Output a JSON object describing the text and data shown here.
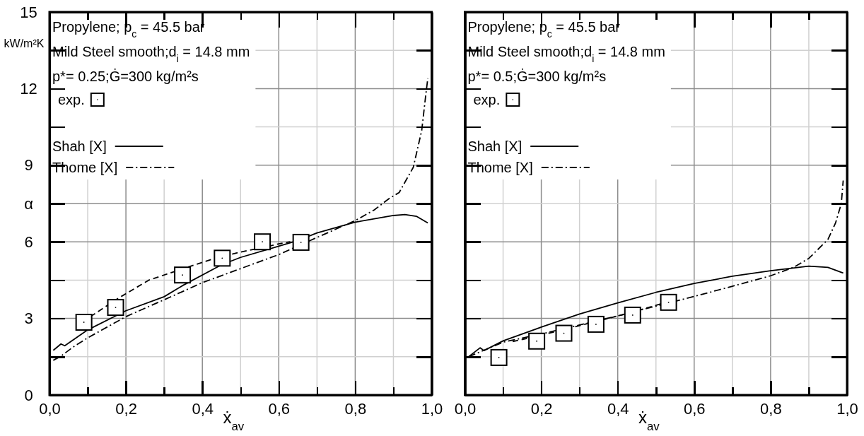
{
  "chart_data": [
    {
      "type": "line",
      "xlabel": "ẋ$_{av}$",
      "ylabel": "kW/m²K",
      "annotations": [
        "Propylene; p$_{c}$ = 45.5 bar",
        "Mild Steel smooth;d$_{i}$ = 14.8 mm",
        "p*= 0.25;Ġ=300 kg/m²s"
      ],
      "xlim": [
        0,
        1
      ],
      "ylim": [
        0,
        15
      ],
      "xticks": [
        {
          "value": 0,
          "label": "0,0"
        },
        {
          "value": 0.1,
          "label": null
        },
        {
          "value": 0.2,
          "label": "0,2"
        },
        {
          "value": 0.3,
          "label": null
        },
        {
          "value": 0.4,
          "label": "0,4"
        },
        {
          "value": 0.5,
          "label": null
        },
        {
          "value": 0.6,
          "label": "0,6"
        },
        {
          "value": 0.7,
          "label": null
        },
        {
          "value": 0.8,
          "label": "0,8"
        },
        {
          "value": 0.9,
          "label": null
        },
        {
          "value": 1,
          "label": "1,0"
        }
      ],
      "yticks": [
        0,
        {
          "value": 1.5,
          "label": null
        },
        3,
        {
          "value": 4.5,
          "label": null
        },
        6,
        {
          "value": 7.5,
          "label": "α"
        },
        9,
        {
          "value": 10.5,
          "label": null
        },
        12,
        {
          "value": 13.5,
          "label": null
        },
        15
      ],
      "grid": true,
      "legend": "top left",
      "series": [
        {
          "name": "exp.",
          "type": "scatter",
          "marker": "square",
          "color": "#000000",
          "x": [
            0.09,
            0.173,
            0.348,
            0.452,
            0.557,
            0.658
          ],
          "values": [
            2.85,
            3.43,
            4.7,
            5.36,
            6.0,
            5.98
          ]
        },
        {
          "name": "Shah [X]",
          "line_style": "solid",
          "color": "#000000",
          "x": [
            0.01,
            0.03,
            0.04,
            0.1,
            0.2,
            0.3,
            0.35,
            0.45,
            0.5,
            0.6,
            0.65,
            0.7,
            0.8,
            0.9,
            0.93,
            0.96,
            0.99
          ],
          "values": [
            1.75,
            2.0,
            1.93,
            2.55,
            3.3,
            3.85,
            4.3,
            5.1,
            5.39,
            5.83,
            6.05,
            6.35,
            6.77,
            7.03,
            7.07,
            7.0,
            6.74
          ]
        },
        {
          "name": "Thome [X]",
          "line_style": "dashdot",
          "color": "#000000",
          "x": [
            0.01,
            0.03,
            0.06,
            0.1,
            0.2,
            0.3,
            0.4,
            0.5,
            0.6,
            0.7,
            0.8,
            0.85,
            0.89,
            0.915,
            0.952,
            0.974,
            0.985,
            0.99
          ],
          "values": [
            1.36,
            1.52,
            1.86,
            2.24,
            3.07,
            3.73,
            4.4,
            4.95,
            5.5,
            6.17,
            6.83,
            7.25,
            7.71,
            7.93,
            8.92,
            10.36,
            11.8,
            12.4
          ]
        },
        {
          "line_style": "dashed",
          "color": "#000000",
          "x": [
            0.107,
            0.18,
            0.26,
            0.34,
            0.43,
            0.5,
            0.56,
            0.6,
            0.63
          ],
          "values": [
            3.07,
            3.79,
            4.5,
            4.9,
            5.34,
            5.6,
            5.78,
            5.92,
            6.0
          ]
        }
      ]
    },
    {
      "type": "line",
      "xlabel": "ẋ$_{av}$",
      "annotations": [
        "Propylene; p$_{c}$ = 45.5 bar",
        "Mild Steel smooth;d$_{i}$ = 14.8 mm",
        "p*= 0.5;Ġ=300 kg/m²s"
      ],
      "xlim": [
        0,
        1
      ],
      "ylim": [
        0,
        15
      ],
      "xticks": [
        {
          "value": 0,
          "label": "0,0"
        },
        {
          "value": 0.1,
          "label": null
        },
        {
          "value": 0.2,
          "label": "0,2"
        },
        {
          "value": 0.3,
          "label": null
        },
        {
          "value": 0.4,
          "label": "0,4"
        },
        {
          "value": 0.5,
          "label": null
        },
        {
          "value": 0.6,
          "label": "0,6"
        },
        {
          "value": 0.7,
          "label": null
        },
        {
          "value": 0.8,
          "label": "0,8"
        },
        {
          "value": 0.9,
          "label": null
        },
        {
          "value": 1,
          "label": "1,0"
        }
      ],
      "yticks": [
        0,
        {
          "value": 1.5,
          "label": null
        },
        3,
        {
          "value": 4.5,
          "label": null
        },
        6,
        {
          "value": 7.5,
          "label": null
        },
        9,
        {
          "value": 10.5,
          "label": null
        },
        12,
        {
          "value": 13.5,
          "label": null
        },
        15
      ],
      "tick_labels": "x",
      "grid": true,
      "legend": "top left",
      "series": [
        {
          "name": "exp.",
          "type": "scatter",
          "marker": "square",
          "color": "#000000",
          "x": [
            0.089,
            0.188,
            0.259,
            0.343,
            0.439,
            0.533
          ],
          "values": [
            1.47,
            2.11,
            2.42,
            2.77,
            3.13,
            3.63
          ]
        },
        {
          "name": "Shah [X]",
          "line_style": "solid",
          "color": "#000000",
          "x": [
            0.01,
            0.04,
            0.05,
            0.1,
            0.2,
            0.3,
            0.4,
            0.5,
            0.6,
            0.7,
            0.8,
            0.9,
            0.95,
            0.99
          ],
          "values": [
            1.5,
            1.85,
            1.74,
            2.12,
            2.66,
            3.17,
            3.61,
            4.02,
            4.37,
            4.65,
            4.87,
            5.05,
            5.0,
            4.78
          ]
        },
        {
          "name": "Thome [X]",
          "line_style": "dashdot",
          "color": "#000000",
          "x": [
            0.01,
            0.1,
            0.2,
            0.3,
            0.4,
            0.5,
            0.6,
            0.7,
            0.8,
            0.86,
            0.9,
            0.95,
            0.97,
            0.985,
            0.99
          ],
          "values": [
            1.5,
            2.07,
            2.39,
            2.74,
            3.1,
            3.48,
            3.86,
            4.26,
            4.67,
            5.0,
            5.35,
            6.09,
            6.74,
            7.5,
            8.4
          ]
        },
        {
          "line_style": "dashed",
          "color": "#000000",
          "x": [
            0.125,
            0.212,
            0.314,
            0.415,
            0.53
          ],
          "values": [
            2.09,
            2.39,
            2.77,
            3.15,
            3.64
          ]
        }
      ]
    }
  ]
}
